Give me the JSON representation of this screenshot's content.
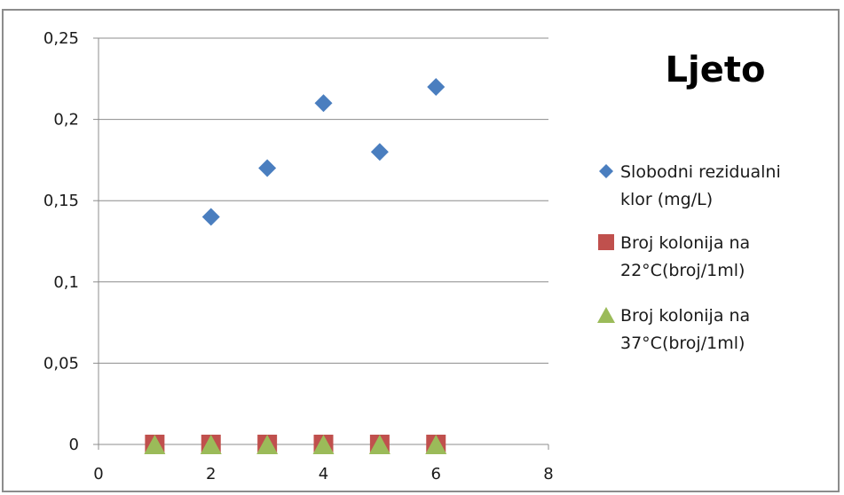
{
  "chart_data": {
    "type": "scatter",
    "title": "Ljeto",
    "xlabel": "",
    "ylabel": "",
    "xlim": [
      0,
      8
    ],
    "ylim": [
      0,
      0.25
    ],
    "x_ticks": [
      "0",
      "2",
      "4",
      "6",
      "8"
    ],
    "x_tick_values": [
      0,
      2,
      4,
      6,
      8
    ],
    "y_ticks": [
      "0",
      "0,05",
      "0,1",
      "0,15",
      "0,2",
      "0,25"
    ],
    "y_tick_values": [
      0,
      0.05,
      0.1,
      0.15,
      0.2,
      0.25
    ],
    "grid": "horizontal",
    "legend_position": "right",
    "series": [
      {
        "name": "Slobodni rezidualni klor (mg/L)",
        "legend_lines": [
          "Slobodni rezidualni",
          "klor (mg/L)"
        ],
        "marker": "diamond",
        "color": "#4a7ebf",
        "x": [
          2,
          3,
          4,
          5,
          6
        ],
        "y": [
          0.14,
          0.17,
          0.21,
          0.18,
          0.22
        ]
      },
      {
        "name": "Broj kolonija na 22°C(broj/1ml)",
        "legend_lines": [
          "Broj kolonija na",
          "22°C(broj/1ml)"
        ],
        "marker": "square",
        "color": "#c0504d",
        "x": [
          1,
          2,
          3,
          4,
          5,
          6
        ],
        "y": [
          0,
          0,
          0,
          0,
          0,
          0
        ]
      },
      {
        "name": "Broj kolonija na 37°C(broj/1ml)",
        "legend_lines": [
          "Broj kolonija na",
          "37°C(broj/1ml)"
        ],
        "marker": "triangle",
        "color": "#9bbb59",
        "x": [
          1,
          2,
          3,
          4,
          5,
          6
        ],
        "y": [
          0,
          0,
          0,
          0,
          0,
          0
        ]
      }
    ]
  }
}
